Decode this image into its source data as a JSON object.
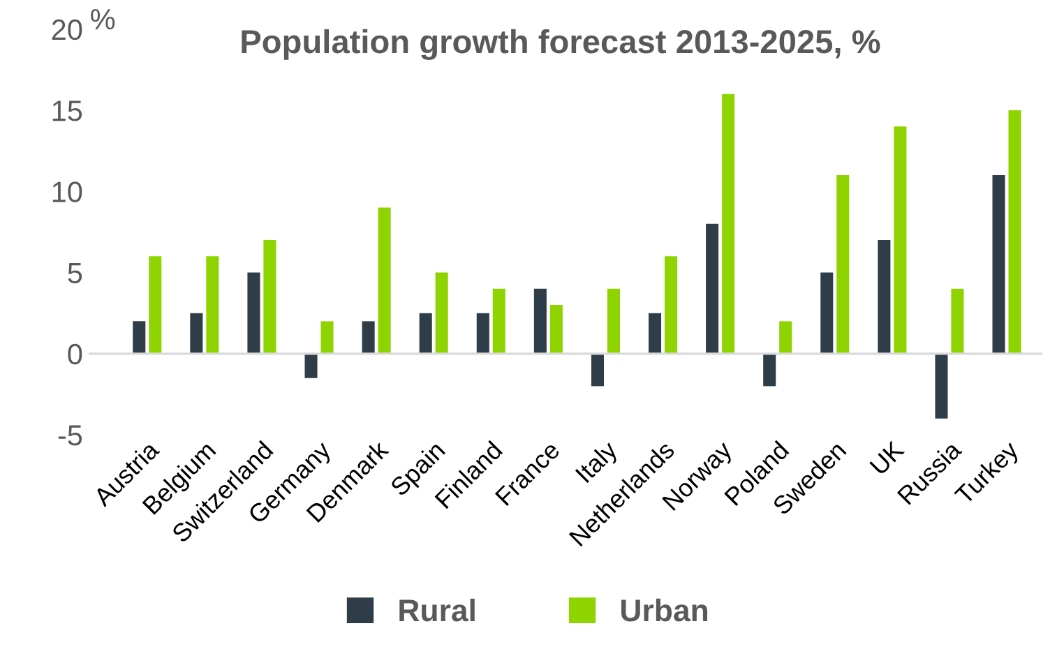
{
  "chart_data": {
    "type": "bar",
    "title": "Population growth forecast 2013-2025, %",
    "ylabel": "%",
    "categories": [
      "Austria",
      "Belgium",
      "Switzerland",
      "Germany",
      "Denmark",
      "Spain",
      "Finland",
      "France",
      "Italy",
      "Netherlands",
      "Norway",
      "Poland",
      "Sweden",
      "UK",
      "Russia",
      "Turkey"
    ],
    "series": [
      {
        "name": "Rural",
        "color": "#2f3d48",
        "values": [
          2,
          2.5,
          5,
          -1.5,
          2,
          2.5,
          2.5,
          4,
          -2,
          2.5,
          8,
          -2,
          5,
          7,
          -4,
          11
        ]
      },
      {
        "name": "Urban",
        "color": "#8fd400",
        "values": [
          6,
          6,
          7,
          2,
          9,
          5,
          4,
          3,
          4,
          6,
          16,
          2,
          11,
          14,
          4,
          15
        ]
      }
    ],
    "ylim": [
      -5,
      20
    ],
    "yticks": [
      -5,
      0,
      5,
      10,
      15,
      20
    ],
    "legend": "bottom"
  }
}
